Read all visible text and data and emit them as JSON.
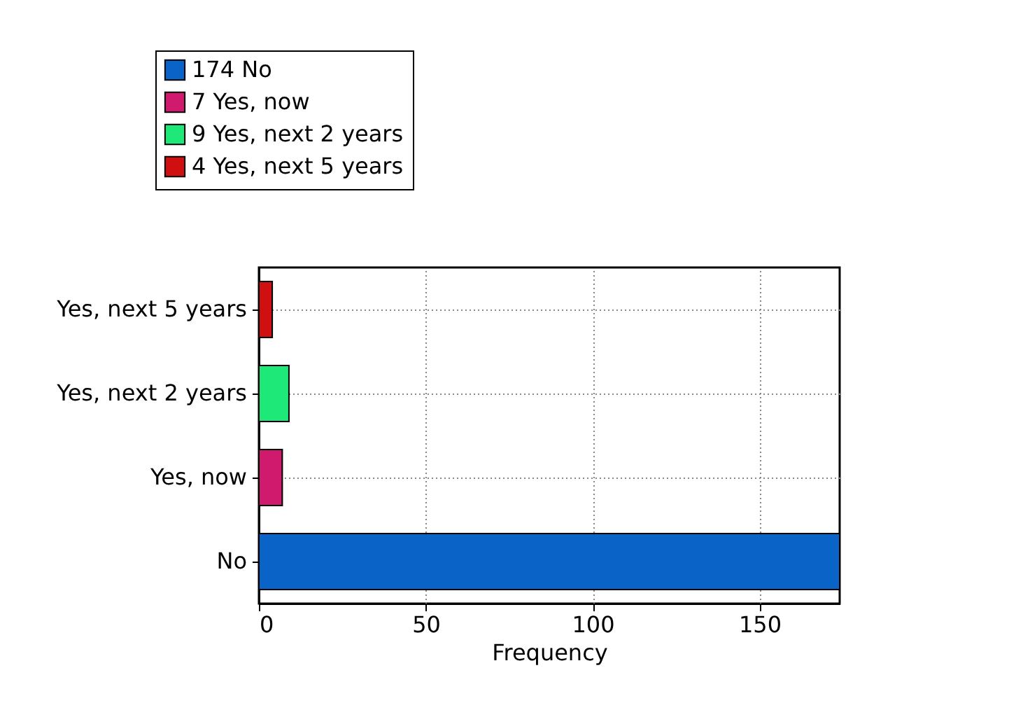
{
  "chart_data": {
    "type": "bar",
    "orientation": "horizontal",
    "stacked": true,
    "xlabel": "Frequency",
    "categories": [
      "Yes, next 5 years",
      "Yes, next 2 years",
      "Yes, now",
      "No"
    ],
    "series": [
      {
        "name": "174 No",
        "color": "#0a64c8",
        "values": [
          null,
          null,
          null,
          174
        ]
      },
      {
        "name": "7 Yes, now",
        "color": "#d01a6e",
        "values": [
          null,
          null,
          7,
          null
        ]
      },
      {
        "name": "9 Yes, next 2 years",
        "color": "#1ee878",
        "values": [
          null,
          9,
          null,
          null
        ]
      },
      {
        "name": "4 Yes, next 5 years",
        "color": "#d01010",
        "values": [
          4,
          null,
          null,
          null
        ]
      }
    ],
    "xlim": [
      0,
      174
    ],
    "xticks": [
      0,
      50,
      100,
      150
    ],
    "grid": true,
    "legend": "top left"
  }
}
